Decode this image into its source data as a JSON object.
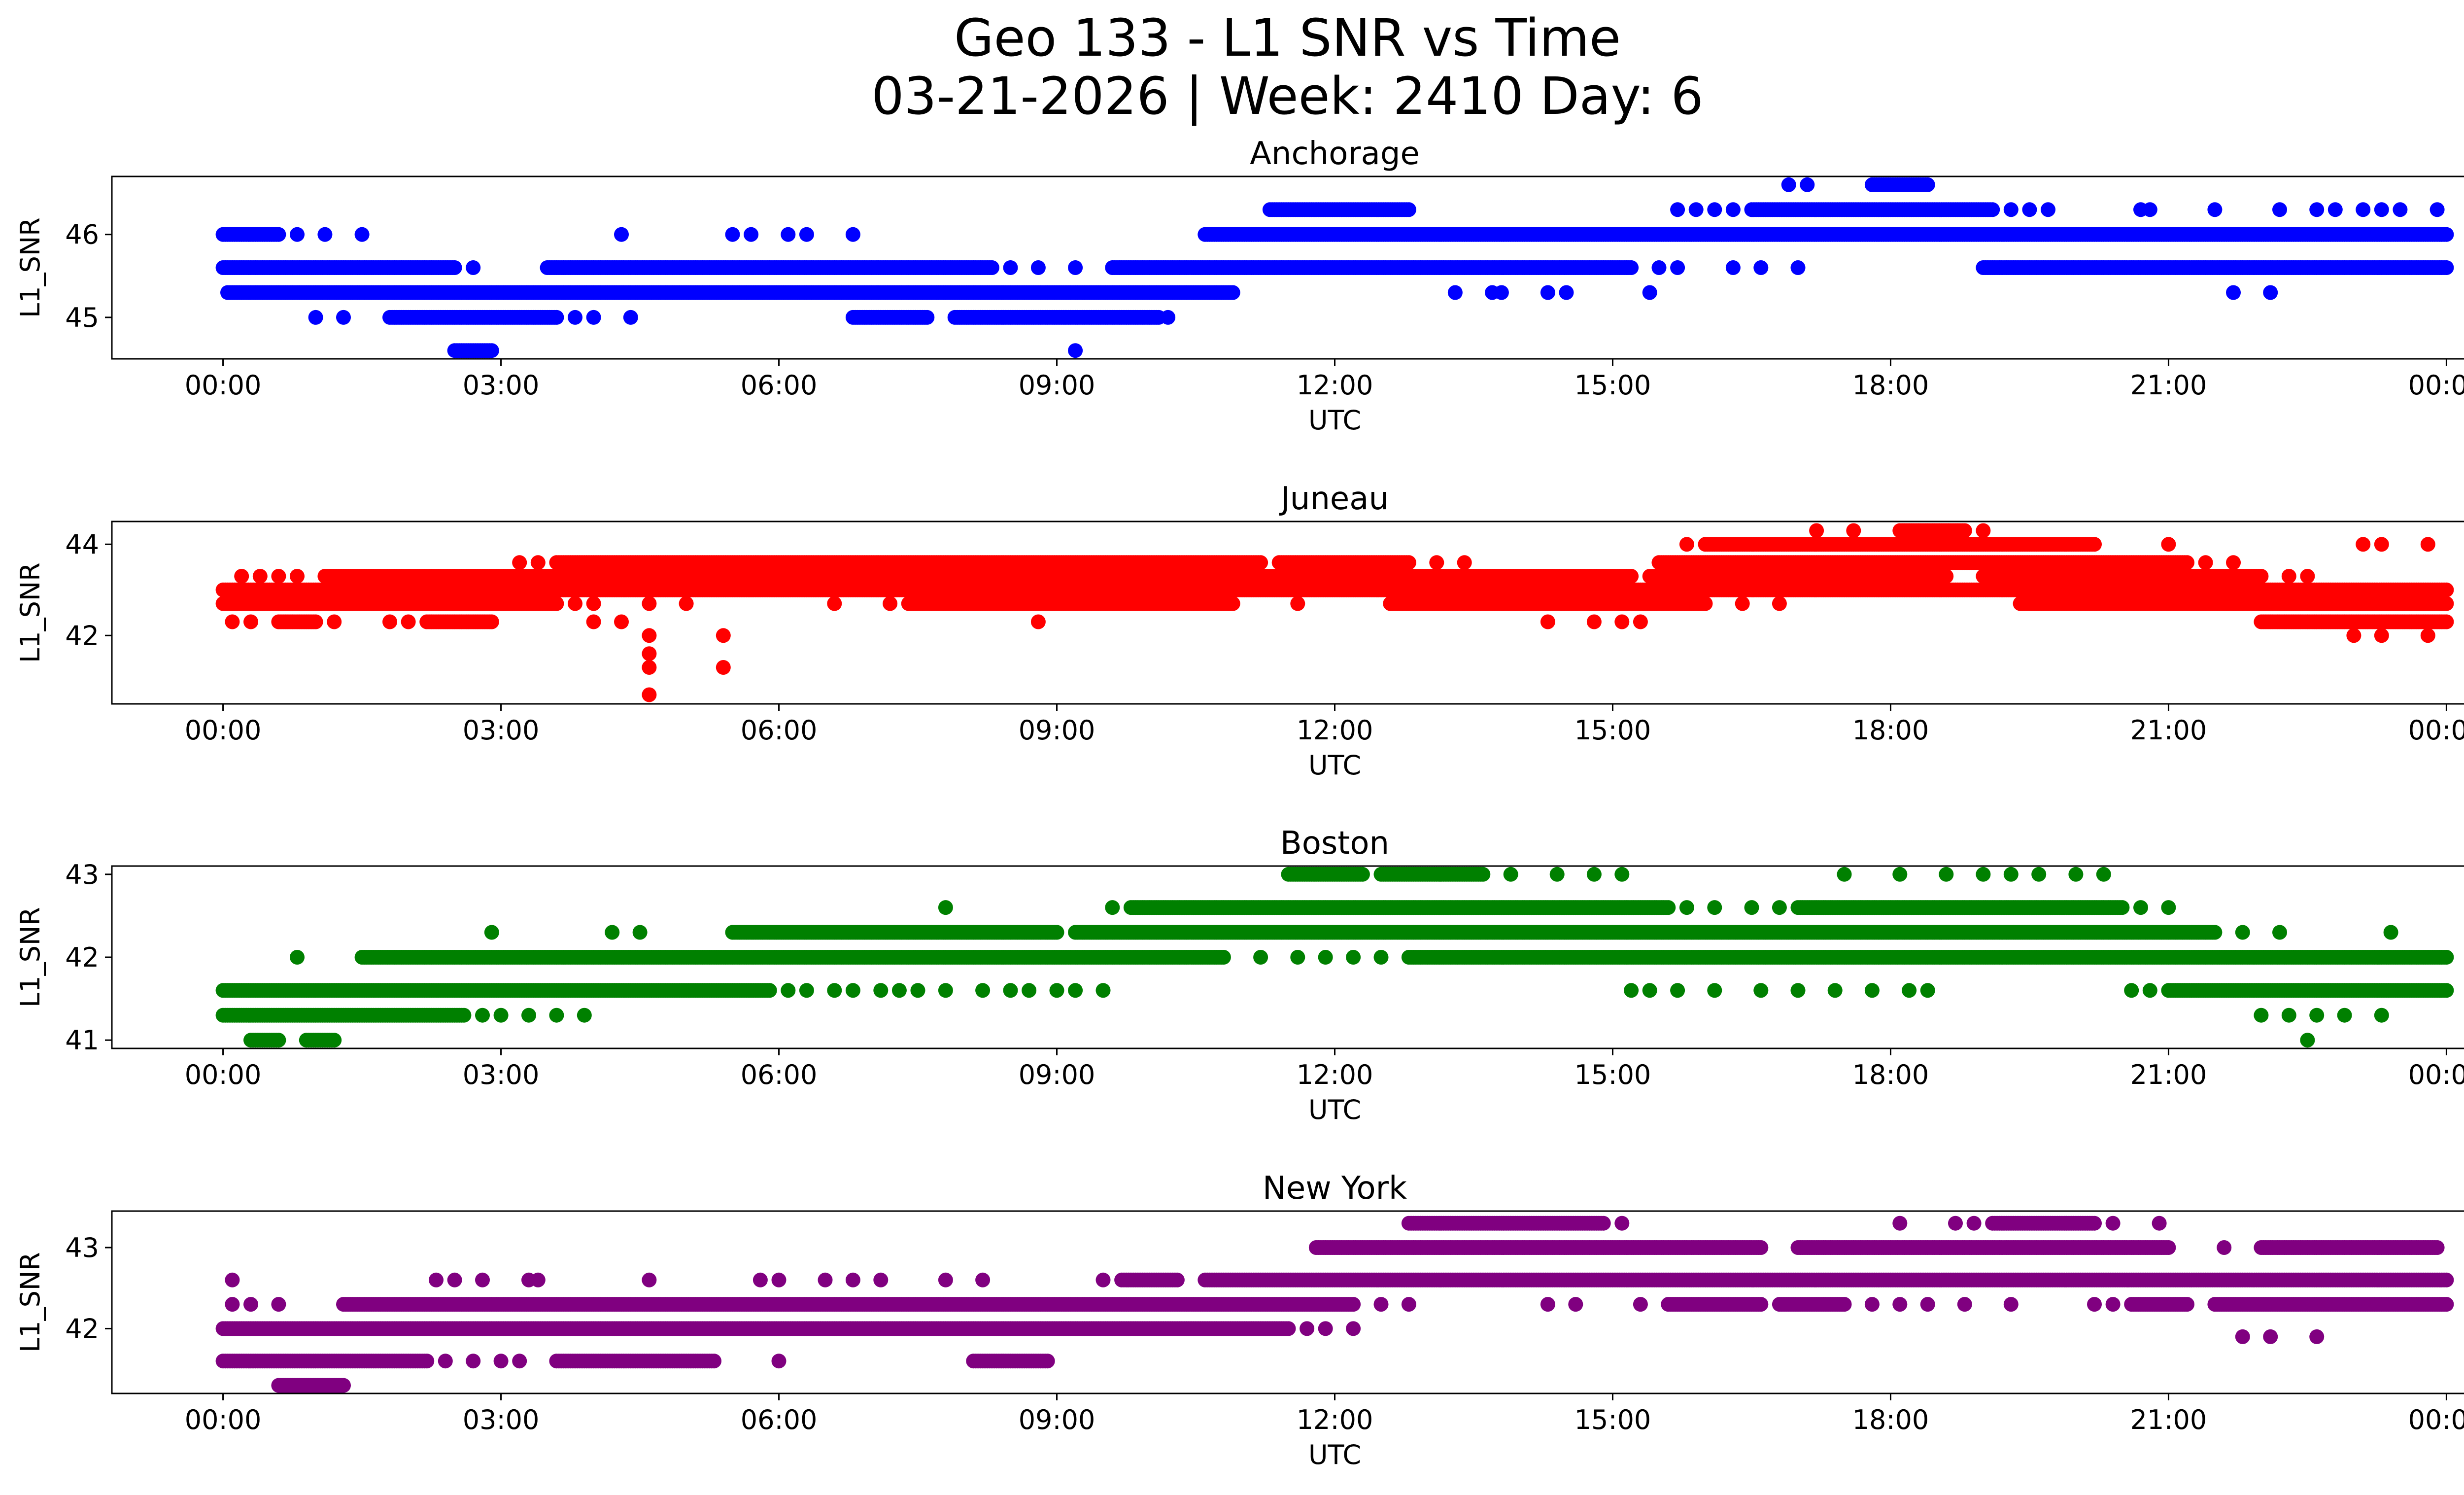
{
  "figure": {
    "title_line1": "Geo 133 - L1 SNR vs Time",
    "title_line2": "03-21-2026 | Week: 2410 Day: 6"
  },
  "chart_data": [
    {
      "type": "scatter",
      "title": "Anchorage",
      "color": "#0000ff",
      "xlabel": "UTC",
      "ylabel": "L1_SNR",
      "xlim": [
        -1.2,
        25.2
      ],
      "ylim": [
        44.5,
        46.7
      ],
      "xticks": [
        0,
        3,
        6,
        9,
        12,
        15,
        18,
        21,
        24
      ],
      "xtick_labels": [
        "00:00",
        "03:00",
        "06:00",
        "09:00",
        "12:00",
        "15:00",
        "18:00",
        "21:00",
        "00:00"
      ],
      "yticks": [
        45,
        46
      ],
      "ytick_labels": [
        "45",
        "46"
      ],
      "series": [
        {
          "y": 46.0,
          "dense": [
            [
              0,
              0.6
            ],
            [
              10.6,
              24
            ]
          ],
          "sparse": [
            0.8,
            1.1,
            1.5,
            4.3,
            5.5,
            5.7,
            6.1,
            6.3,
            6.8
          ]
        },
        {
          "y": 45.6,
          "dense": [
            [
              0,
              2.5
            ],
            [
              3.5,
              8.3
            ],
            [
              9.6,
              15.2
            ],
            [
              19.0,
              24
            ]
          ],
          "sparse": [
            2.7,
            8.5,
            8.8,
            9.2,
            15.5,
            15.7,
            16.3,
            16.6,
            17.0
          ]
        },
        {
          "y": 45.3,
          "dense": [
            [
              0.05,
              10.9
            ]
          ],
          "sparse": [
            13.3,
            13.7,
            13.8,
            14.3,
            14.5,
            15.4,
            21.7,
            22.1
          ]
        },
        {
          "y": 45.0,
          "dense": [
            [
              1.8,
              3.6
            ],
            [
              6.8,
              7.6
            ],
            [
              7.9,
              10.1
            ]
          ],
          "sparse": [
            1.0,
            1.3,
            3.8,
            4.0,
            4.4,
            10.2
          ]
        },
        {
          "y": 46.3,
          "dense": [
            [
              11.3,
              12.8
            ],
            [
              16.5,
              19.1
            ]
          ],
          "sparse": [
            15.7,
            15.9,
            16.1,
            16.3,
            19.3,
            19.5,
            19.7,
            20.7,
            20.8,
            21.5,
            22.2,
            22.6,
            22.8,
            23.1,
            23.3,
            23.5,
            23.9
          ]
        },
        {
          "y": 46.6,
          "dense": [
            [
              17.8,
              18.4
            ]
          ],
          "sparse": [
            16.9,
            17.1
          ]
        },
        {
          "y": 44.6,
          "dense": [
            [
              2.5,
              2.9
            ]
          ],
          "sparse": [
            9.2
          ]
        }
      ]
    },
    {
      "type": "scatter",
      "title": "Juneau",
      "color": "#ff0000",
      "xlabel": "UTC",
      "ylabel": "L1_SNR",
      "xlim": [
        -1.2,
        25.2
      ],
      "ylim": [
        40.5,
        44.5
      ],
      "xticks": [
        0,
        3,
        6,
        9,
        12,
        15,
        18,
        21,
        24
      ],
      "xtick_labels": [
        "00:00",
        "03:00",
        "06:00",
        "09:00",
        "12:00",
        "15:00",
        "18:00",
        "21:00",
        "00:00"
      ],
      "yticks": [
        42,
        44
      ],
      "ytick_labels": [
        "42",
        "44"
      ],
      "series": [
        {
          "y": 43.0,
          "dense": [
            [
              0,
              24
            ]
          ],
          "sparse": []
        },
        {
          "y": 42.7,
          "dense": [
            [
              0,
              3.6
            ],
            [
              7.4,
              10.9
            ],
            [
              12.6,
              16.0
            ],
            [
              19.4,
              24
            ]
          ],
          "sparse": [
            3.8,
            4.0,
            4.6,
            5.0,
            6.6,
            7.2,
            11.6,
            16.4,
            16.8
          ]
        },
        {
          "y": 43.3,
          "dense": [
            [
              1.1,
              15.2
            ],
            [
              15.4,
              18.6
            ],
            [
              19.0,
              22.0
            ]
          ],
          "sparse": [
            0.2,
            0.4,
            0.6,
            0.8,
            22.3,
            22.5
          ]
        },
        {
          "y": 43.6,
          "dense": [
            [
              3.6,
              11.2
            ],
            [
              11.4,
              12.8
            ],
            [
              15.5,
              21.2
            ]
          ],
          "sparse": [
            3.2,
            3.4,
            13.1,
            13.4,
            21.4,
            21.7
          ]
        },
        {
          "y": 42.3,
          "dense": [
            [
              0.6,
              1.0
            ],
            [
              2.2,
              2.9
            ],
            [
              22.0,
              24
            ]
          ],
          "sparse": [
            0.1,
            0.3,
            1.2,
            1.8,
            2.0,
            4.0,
            4.3,
            8.8,
            14.3,
            14.8,
            15.1,
            15.3
          ]
        },
        {
          "y": 44.0,
          "dense": [
            [
              16.0,
              20.2
            ]
          ],
          "sparse": [
            15.8,
            21.0,
            23.1,
            23.3,
            23.8
          ]
        },
        {
          "y": 44.3,
          "dense": [
            [
              18.1,
              18.8
            ]
          ],
          "sparse": [
            17.2,
            17.6,
            19.0
          ]
        },
        {
          "y": 42.0,
          "dense": [],
          "sparse": [
            4.6,
            5.4,
            23.0,
            23.3,
            23.8
          ]
        },
        {
          "y": 41.6,
          "dense": [],
          "sparse": [
            4.6
          ]
        },
        {
          "y": 41.3,
          "dense": [],
          "sparse": [
            4.6,
            5.4
          ]
        },
        {
          "y": 40.7,
          "dense": [],
          "sparse": [
            4.6
          ]
        }
      ]
    },
    {
      "type": "scatter",
      "title": "Boston",
      "color": "#008000",
      "xlabel": "UTC",
      "ylabel": "L1_SNR",
      "xlim": [
        -1.2,
        25.2
      ],
      "ylim": [
        40.9,
        43.1
      ],
      "xticks": [
        0,
        3,
        6,
        9,
        12,
        15,
        18,
        21,
        24
      ],
      "xtick_labels": [
        "00:00",
        "03:00",
        "06:00",
        "09:00",
        "12:00",
        "15:00",
        "18:00",
        "21:00",
        "00:00"
      ],
      "yticks": [
        41,
        42,
        43
      ],
      "ytick_labels": [
        "41",
        "42",
        "43"
      ],
      "series": [
        {
          "y": 41.6,
          "dense": [
            [
              0,
              5.9
            ],
            [
              21.0,
              24
            ]
          ],
          "sparse": [
            6.1,
            6.3,
            6.6,
            6.8,
            7.1,
            7.3,
            7.5,
            7.8,
            8.2,
            8.5,
            8.7,
            9.0,
            9.2,
            9.5,
            15.2,
            15.4,
            15.7,
            16.1,
            16.6,
            17.0,
            17.4,
            17.8,
            18.2,
            18.4,
            20.6,
            20.8
          ]
        },
        {
          "y": 41.3,
          "dense": [
            [
              0,
              2.6
            ]
          ],
          "sparse": [
            2.8,
            3.0,
            3.3,
            3.6,
            3.9,
            22.0,
            22.3,
            22.6,
            22.9,
            23.3
          ]
        },
        {
          "y": 42.0,
          "dense": [
            [
              1.5,
              10.8
            ],
            [
              12.8,
              24
            ]
          ],
          "sparse": [
            0.8,
            11.2,
            11.6,
            11.9,
            12.2,
            12.5
          ]
        },
        {
          "y": 42.3,
          "dense": [
            [
              5.5,
              9.0
            ],
            [
              9.2,
              21.5
            ]
          ],
          "sparse": [
            2.9,
            4.2,
            4.5,
            21.8,
            22.2,
            23.4
          ]
        },
        {
          "y": 42.6,
          "dense": [
            [
              9.8,
              15.6
            ],
            [
              17.0,
              20.5
            ]
          ],
          "sparse": [
            7.8,
            9.6,
            15.8,
            16.1,
            16.5,
            16.8,
            20.7,
            21.0
          ]
        },
        {
          "y": 43.0,
          "dense": [
            [
              11.5,
              12.3
            ],
            [
              12.5,
              13.6
            ]
          ],
          "sparse": [
            13.9,
            14.4,
            14.8,
            15.1,
            17.5,
            18.1,
            18.6,
            19.0,
            19.3,
            19.6,
            20.0,
            20.3
          ]
        },
        {
          "y": 41.0,
          "dense": [
            [
              0.3,
              0.6
            ],
            [
              0.9,
              1.2
            ]
          ],
          "sparse": [
            22.5
          ]
        }
      ]
    },
    {
      "type": "scatter",
      "title": "New York",
      "color": "#800080",
      "xlabel": "UTC",
      "ylabel": "L1_SNR",
      "xlim": [
        -1.2,
        25.2
      ],
      "ylim": [
        41.2,
        43.45
      ],
      "xticks": [
        0,
        3,
        6,
        9,
        12,
        15,
        18,
        21,
        24
      ],
      "xtick_labels": [
        "00:00",
        "03:00",
        "06:00",
        "09:00",
        "12:00",
        "15:00",
        "18:00",
        "21:00",
        "00:00"
      ],
      "yticks": [
        42,
        43
      ],
      "ytick_labels": [
        "42",
        "43"
      ],
      "series": [
        {
          "y": 42.0,
          "dense": [
            [
              0,
              11.5
            ]
          ],
          "sparse": [
            11.7,
            11.9,
            12.2
          ]
        },
        {
          "y": 41.6,
          "dense": [
            [
              0,
              2.2
            ],
            [
              3.6,
              5.3
            ],
            [
              8.1,
              8.9
            ]
          ],
          "sparse": [
            2.4,
            2.7,
            3.0,
            3.2,
            6.0
          ]
        },
        {
          "y": 42.3,
          "dense": [
            [
              1.3,
              12.2
            ],
            [
              15.6,
              16.6
            ],
            [
              16.8,
              17.5
            ],
            [
              20.6,
              21.2
            ],
            [
              21.5,
              24
            ]
          ],
          "sparse": [
            0.1,
            0.3,
            0.6,
            12.5,
            12.8,
            14.3,
            14.6,
            15.3,
            17.8,
            18.1,
            18.4,
            18.8,
            19.3,
            20.2,
            20.4
          ]
        },
        {
          "y": 42.6,
          "dense": [
            [
              9.7,
              10.3
            ],
            [
              10.6,
              24
            ]
          ],
          "sparse": [
            0.1,
            2.3,
            2.5,
            2.8,
            3.3,
            3.4,
            4.6,
            5.8,
            6.0,
            6.5,
            6.8,
            7.1,
            7.8,
            8.2,
            9.5
          ]
        },
        {
          "y": 43.0,
          "dense": [
            [
              11.8,
              16.6
            ],
            [
              17.0,
              21.0
            ],
            [
              22.0,
              23.9
            ]
          ],
          "sparse": [
            21.6
          ]
        },
        {
          "y": 43.3,
          "dense": [
            [
              12.8,
              14.9
            ],
            [
              19.1,
              20.2
            ]
          ],
          "sparse": [
            15.1,
            18.1,
            18.7,
            18.9,
            20.4,
            20.9
          ]
        },
        {
          "y": 41.3,
          "dense": [
            [
              0.6,
              1.3
            ]
          ],
          "sparse": []
        },
        {
          "y": 41.9,
          "dense": [],
          "sparse": [
            21.8,
            22.1,
            22.6
          ]
        }
      ]
    }
  ]
}
